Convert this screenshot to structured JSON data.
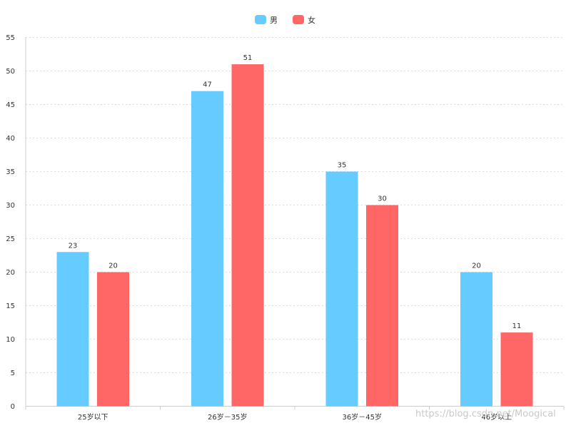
{
  "chart_data": {
    "type": "bar",
    "categories": [
      "25岁以下",
      "26岁－35岁",
      "36岁－45岁",
      "46岁以上"
    ],
    "series": [
      {
        "name": "男",
        "color": "#66ccff",
        "values": [
          23,
          47,
          35,
          20
        ]
      },
      {
        "name": "女",
        "color": "#ff6666",
        "values": [
          20,
          51,
          30,
          11
        ]
      }
    ],
    "yticks": [
      0,
      5,
      10,
      15,
      20,
      25,
      30,
      35,
      40,
      45,
      50,
      55
    ],
    "ylim": [
      0,
      55
    ],
    "grid": true,
    "legend_position": "top-center"
  },
  "watermark": "https://blog.csdn.net/Moogical"
}
